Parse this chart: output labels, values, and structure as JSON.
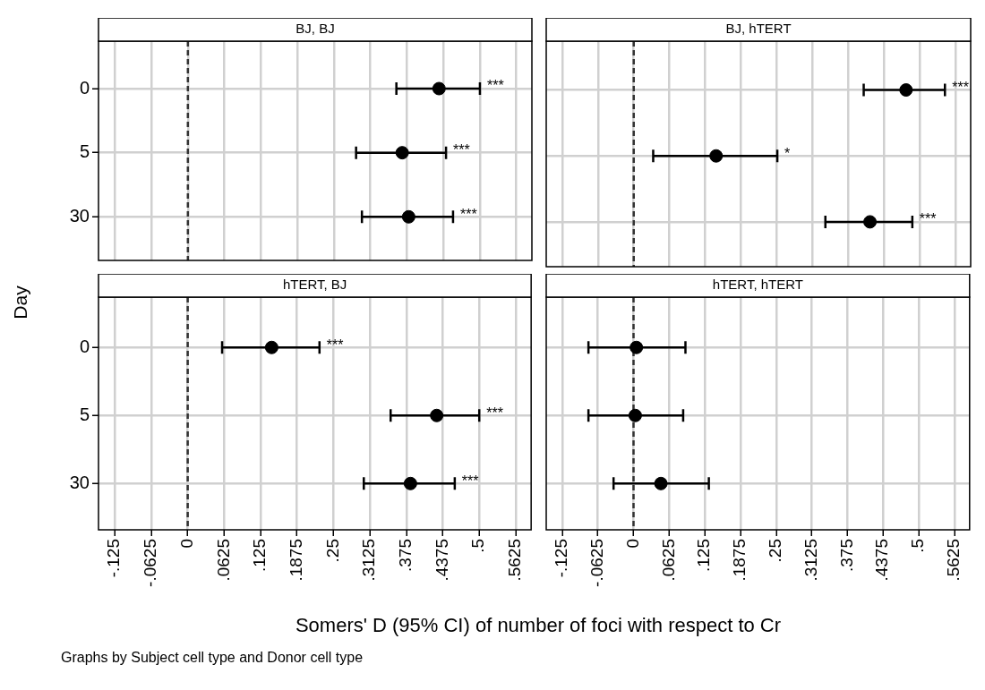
{
  "chart_data": [
    {
      "type": "scatter",
      "orientation": "horizontal",
      "title": "BJ, BJ",
      "ylabel": "Day",
      "categories": [
        "0",
        "5",
        "30"
      ],
      "values": [
        0.43,
        0.367,
        0.378
      ],
      "errors": [
        [
          0.357,
          0.5
        ],
        [
          0.288,
          0.442
        ],
        [
          0.298,
          0.454
        ]
      ],
      "color": "#000000",
      "marker": "circle",
      "xlim": [
        -0.153,
        0.589
      ],
      "xticks": [
        {
          "value": -0.125,
          "label": null
        },
        {
          "value": -0.0625,
          "label": null
        },
        {
          "value": 0,
          "label": null
        },
        {
          "value": 0.0625,
          "label": null
        },
        {
          "value": 0.125,
          "label": null
        },
        {
          "value": 0.1875,
          "label": null
        },
        {
          "value": 0.25,
          "label": null
        },
        {
          "value": 0.3125,
          "label": null
        },
        {
          "value": 0.375,
          "label": null
        },
        {
          "value": 0.4375,
          "label": null
        },
        {
          "value": 0.5,
          "label": null
        },
        {
          "value": 0.5625,
          "label": null
        }
      ],
      "grid": true,
      "tick_labels": "y",
      "ref_lines": [
        {
          "axis": "x",
          "value": 0,
          "color": "#333333",
          "line_style": "dashed"
        }
      ],
      "annotations": [
        "***",
        "***",
        "***"
      ]
    },
    {
      "type": "scatter",
      "orientation": "horizontal",
      "title": "BJ, hTERT",
      "categories": [
        "0",
        "5",
        "30"
      ],
      "values": [
        0.476,
        0.144,
        0.413
      ],
      "errors": [
        [
          0.402,
          0.544
        ],
        [
          0.034,
          0.251
        ],
        [
          0.335,
          0.487
        ]
      ],
      "color": "#000000",
      "marker": "circle",
      "xlim": [
        -0.153,
        0.589
      ],
      "xticks": [
        {
          "value": -0.125,
          "label": null
        },
        {
          "value": -0.0625,
          "label": null
        },
        {
          "value": 0,
          "label": null
        },
        {
          "value": 0.0625,
          "label": null
        },
        {
          "value": 0.125,
          "label": null
        },
        {
          "value": 0.1875,
          "label": null
        },
        {
          "value": 0.25,
          "label": null
        },
        {
          "value": 0.3125,
          "label": null
        },
        {
          "value": 0.375,
          "label": null
        },
        {
          "value": 0.4375,
          "label": null
        },
        {
          "value": 0.5,
          "label": null
        },
        {
          "value": 0.5625,
          "label": null
        }
      ],
      "grid": true,
      "tick_labels": false,
      "ref_lines": [
        {
          "axis": "x",
          "value": 0,
          "color": "#333333",
          "line_style": "dashed"
        }
      ],
      "annotations": [
        "***",
        "*",
        "***"
      ]
    },
    {
      "type": "scatter",
      "orientation": "horizontal",
      "title": "hTERT, BJ",
      "xlabel": "Somers' D (95% CI) of number of foci with respect to Cr",
      "categories": [
        "0",
        "5",
        "30"
      ],
      "values": [
        0.144,
        0.427,
        0.382
      ],
      "errors": [
        [
          0.059,
          0.226
        ],
        [
          0.348,
          0.5
        ],
        [
          0.302,
          0.458
        ]
      ],
      "color": "#000000",
      "marker": "circle",
      "xlim": [
        -0.153,
        0.589
      ],
      "xticks": [
        {
          "value": -0.125,
          "label": "-.125"
        },
        {
          "value": -0.0625,
          "label": "-.0625"
        },
        0,
        {
          "value": 0.0625,
          "label": ".0625"
        },
        {
          "value": 0.125,
          "label": ".125"
        },
        {
          "value": 0.1875,
          "label": ".1875"
        },
        {
          "value": 0.25,
          "label": ".25"
        },
        {
          "value": 0.3125,
          "label": ".3125"
        },
        {
          "value": 0.375,
          "label": ".375"
        },
        {
          "value": 0.4375,
          "label": ".4375"
        },
        {
          "value": 0.5,
          "label": ".5"
        },
        {
          "value": 0.5625,
          "label": ".5625"
        }
      ],
      "grid": true,
      "ref_lines": [
        {
          "axis": "x",
          "value": 0,
          "color": "#333333",
          "line_style": "dashed"
        }
      ],
      "annotations": [
        "***",
        "***",
        "***",
        "Graphs by Subject cell type and Donor cell type"
      ]
    },
    {
      "type": "scatter",
      "orientation": "horizontal",
      "title": "hTERT, hTERT",
      "categories": [
        "0",
        "5",
        "30"
      ],
      "values": [
        0.005,
        0.003,
        0.048
      ],
      "errors": [
        [
          -0.079,
          0.091
        ],
        [
          -0.079,
          0.087
        ],
        [
          -0.035,
          0.132
        ]
      ],
      "color": "#000000",
      "marker": "circle",
      "xlim": [
        -0.153,
        0.589
      ],
      "xticks": [
        {
          "value": -0.125,
          "label": "-.125"
        },
        {
          "value": -0.0625,
          "label": "-.0625"
        },
        0,
        {
          "value": 0.0625,
          "label": ".0625"
        },
        {
          "value": 0.125,
          "label": ".125"
        },
        {
          "value": 0.1875,
          "label": ".1875"
        },
        {
          "value": 0.25,
          "label": ".25"
        },
        {
          "value": 0.3125,
          "label": ".3125"
        },
        {
          "value": 0.375,
          "label": ".375"
        },
        {
          "value": 0.4375,
          "label": ".4375"
        },
        {
          "value": 0.5,
          "label": ".5"
        },
        {
          "value": 0.5625,
          "label": ".5625"
        }
      ],
      "grid": true,
      "tick_labels": "x",
      "ref_lines": [
        {
          "axis": "x",
          "value": 0,
          "color": "#333333",
          "line_style": "dashed"
        }
      ]
    }
  ]
}
